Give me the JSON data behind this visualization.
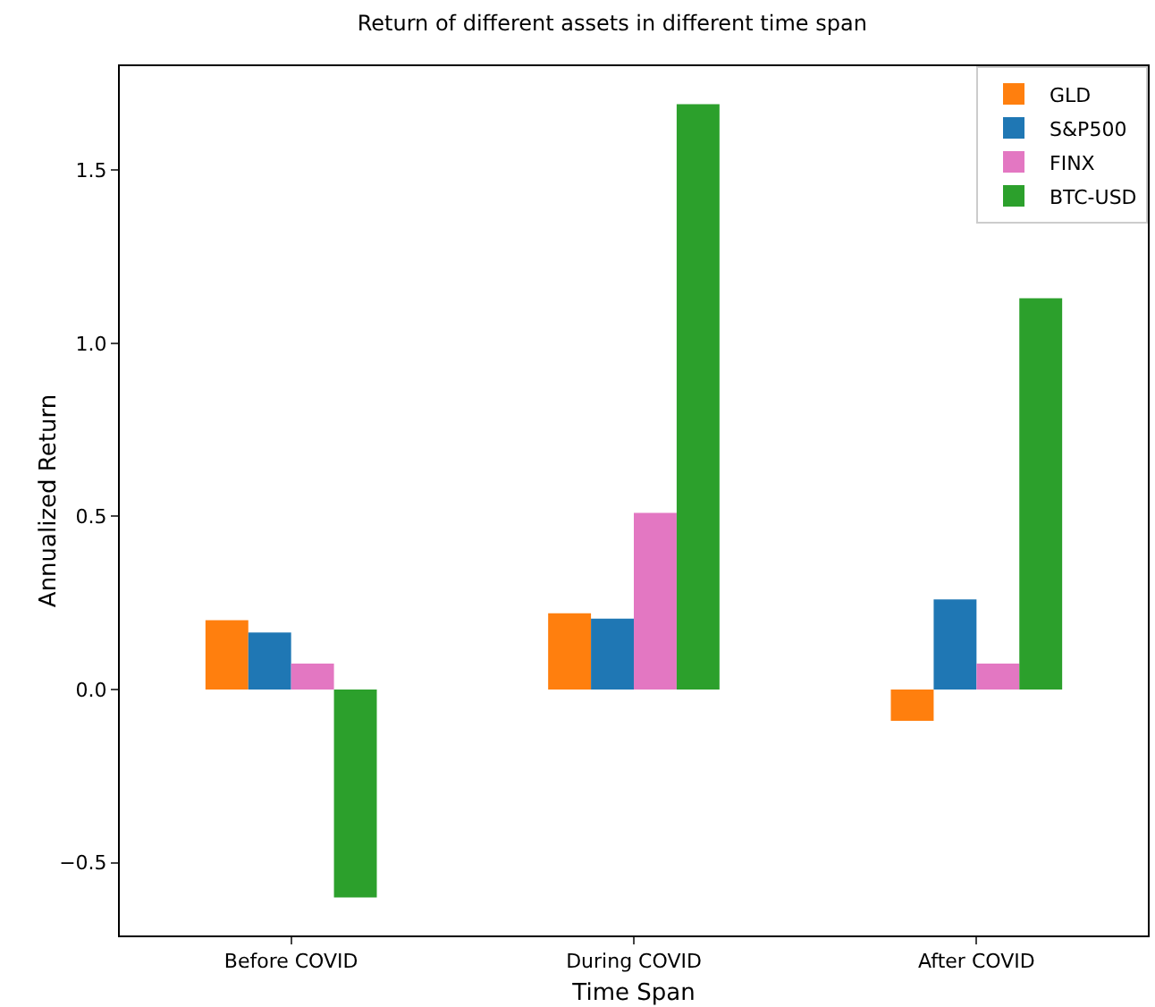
{
  "chart_data": {
    "type": "bar",
    "title": "Return of different assets in different time span",
    "xlabel": "Time Span",
    "ylabel": "Annualized Return",
    "categories": [
      "Before COVID",
      "During COVID",
      "After COVID"
    ],
    "series": [
      {
        "name": "GLD",
        "color": "#ff7f0e",
        "values": [
          0.2,
          0.22,
          -0.09
        ]
      },
      {
        "name": "S&P500",
        "color": "#1f77b4",
        "values": [
          0.165,
          0.205,
          0.26
        ]
      },
      {
        "name": "FINX",
        "color": "#e377c2",
        "values": [
          0.075,
          0.51,
          0.075
        ]
      },
      {
        "name": "BTC-USD",
        "color": "#2ca02c",
        "values": [
          -0.6,
          1.69,
          1.13
        ]
      }
    ],
    "ylim": [
      -0.71,
      1.8
    ],
    "yticks": [
      {
        "value": -0.5,
        "label": "−0.5"
      },
      {
        "value": 0,
        "label": "0.0"
      },
      0.5,
      {
        "value": 1,
        "label": "1.0"
      },
      1.5
    ],
    "grid": false,
    "legend": "top right"
  }
}
